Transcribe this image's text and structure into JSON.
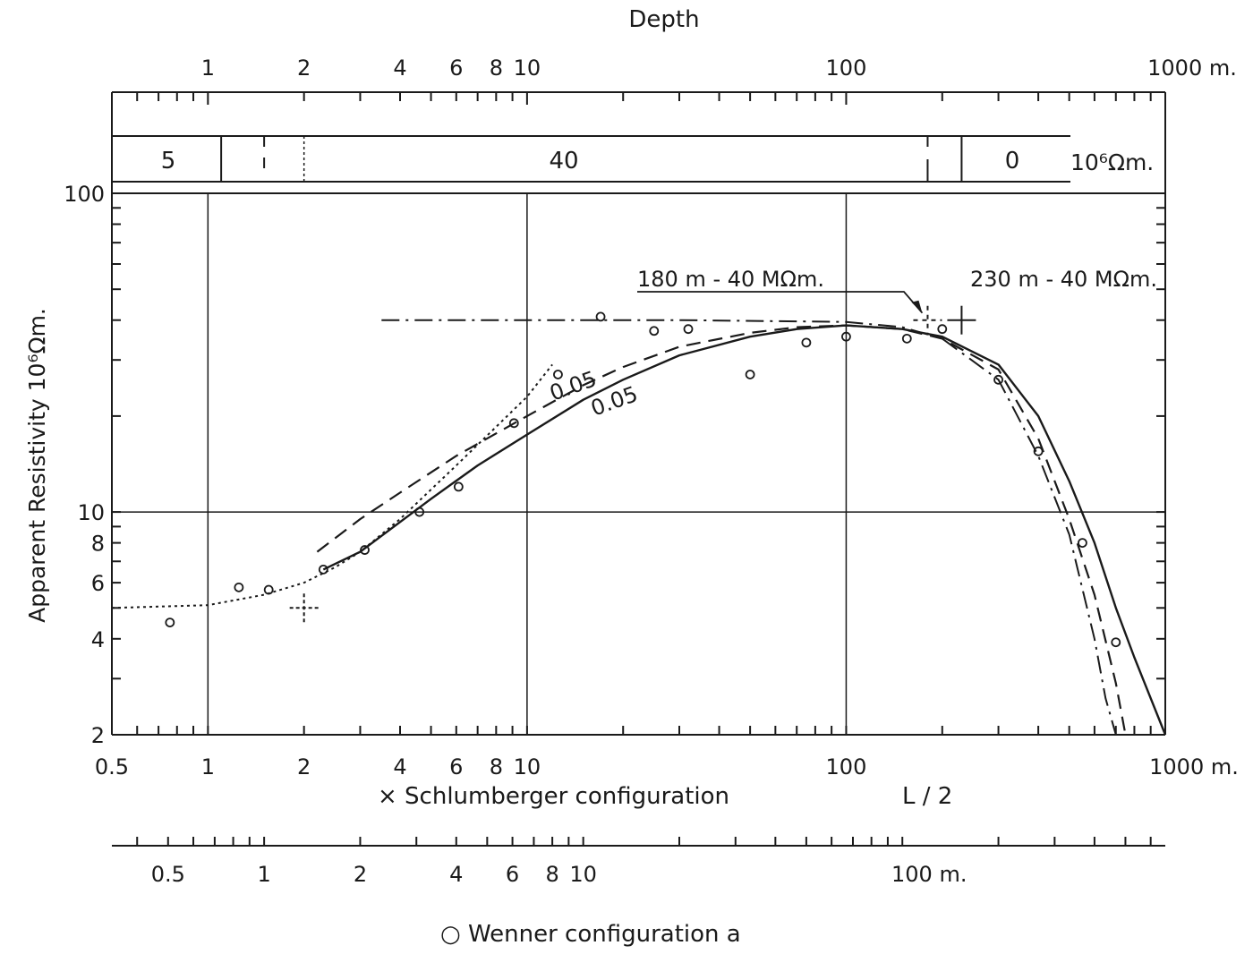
{
  "chart_data": {
    "type": "line",
    "x_scale": "log",
    "y_scale": "log",
    "xlim": [
      0.5,
      1000
    ],
    "ylim": [
      2,
      100
    ],
    "ylabel": "Apparent  Resistivity  10⁶Ωm.",
    "xlabel_schlumberger": "× Schlumberger  configuration",
    "xlabel_schlumberger_suffix": "L / 2",
    "xlabel_wenner": "○ Wenner   configuration   a",
    "top_axis_title": "Depth",
    "x_ticks": [
      "0.5",
      "1",
      "2",
      "4",
      "6",
      "8",
      "10",
      "100",
      "1000 m."
    ],
    "y_ticks": [
      "2",
      "4",
      "6",
      "8",
      "10",
      "100"
    ],
    "top_ticks": [
      "1",
      "2",
      "4",
      "6",
      "8",
      "10",
      "100",
      "1000 m."
    ],
    "wenner_ticks": [
      "0.5",
      "1",
      "2",
      "4",
      "6",
      "8",
      "10",
      "100 m."
    ],
    "layer_model": {
      "unit": "10⁶Ωm.",
      "layers": [
        {
          "label": "5",
          "from_depth": 0.5,
          "to_depth": 1.5
        },
        {
          "label": "40",
          "from_depth": 1.5,
          "to_depth": 230
        },
        {
          "label": "0",
          "from_depth": 230,
          "to_depth": 1000
        }
      ]
    },
    "annotations": [
      {
        "text": "180 m - 40 MΩm.",
        "x": 180,
        "y": 40
      },
      {
        "text": "230 m - 40 MΩm.",
        "x": 230,
        "y": 40
      },
      {
        "text": "0.05",
        "x": 16,
        "y": 27
      },
      {
        "text": "0.05",
        "x": 25,
        "y": 21
      }
    ],
    "series": [
      {
        "style": "markers",
        "x": [
          0.76,
          1.25,
          1.55,
          2.3,
          3.1,
          4.6,
          6.1,
          9.1,
          12.5,
          17,
          25,
          32,
          50,
          75,
          100,
          155,
          200,
          300,
          400,
          550,
          700
        ],
        "y": [
          4.5,
          5.8,
          5.7,
          6.6,
          7.6,
          10,
          12,
          19,
          27,
          41,
          37,
          37.5,
          27,
          34,
          35.5,
          35,
          37.5,
          26,
          15.5,
          8,
          3.9
        ]
      },
      {
        "style": "solid",
        "x": [
          2.3,
          3,
          4,
          5,
          7,
          10,
          15,
          20,
          30,
          50,
          70,
          100,
          150,
          200,
          300,
          400,
          500,
          600,
          700,
          800,
          1000
        ],
        "y": [
          6.6,
          7.5,
          9.3,
          11,
          14,
          17.5,
          22.5,
          26,
          31,
          35.5,
          37.5,
          38.5,
          37.5,
          35.5,
          29,
          20,
          12.5,
          8,
          5,
          3.5,
          2
        ]
      },
      {
        "style": "dashed",
        "x": [
          2.2,
          3,
          4,
          6,
          10,
          15,
          20,
          30,
          50,
          70,
          100,
          150,
          200,
          300,
          400,
          500,
          600,
          700,
          750
        ],
        "y": [
          7.5,
          9.5,
          11.5,
          15,
          20,
          25,
          28.5,
          33,
          36.5,
          38,
          38.5,
          37.5,
          35,
          28,
          17,
          9.5,
          5.5,
          2.9,
          2
        ]
      },
      {
        "style": "dash-dot",
        "x": [
          3.5,
          10,
          30,
          100,
          150,
          200,
          300,
          400,
          500,
          600,
          650,
          700
        ],
        "y": [
          40,
          40,
          40,
          39.5,
          38,
          35,
          26,
          15,
          8.5,
          4,
          2.6,
          2
        ]
      },
      {
        "style": "dotted",
        "x": [
          0.5,
          1,
          1.5,
          2,
          2.5,
          3,
          4,
          6,
          8,
          10,
          12
        ],
        "y": [
          5,
          5.1,
          5.5,
          6,
          6.7,
          7.5,
          9.5,
          14,
          18.5,
          23,
          29
        ]
      }
    ],
    "crosshairs": [
      {
        "x": 2,
        "y": 5
      },
      {
        "x": 180,
        "y": 40
      },
      {
        "x": 230,
        "y": 40
      }
    ],
    "grid": "major lines at x=1,10,100 and y=10",
    "legend": "none"
  }
}
